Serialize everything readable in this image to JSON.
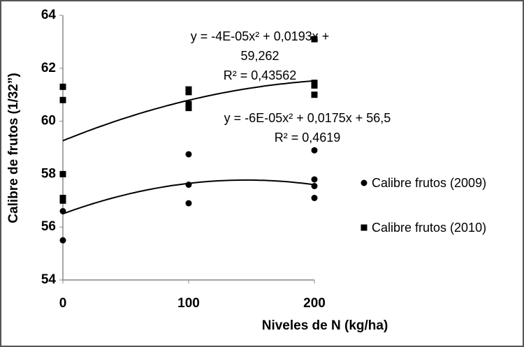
{
  "chart_data": {
    "type": "scatter",
    "x_label": "Niveles de N (kg/ha)",
    "y_label": "Calibre de frutos (1/32”)",
    "xlim": [
      0,
      200
    ],
    "xticks": [
      0,
      100,
      200
    ],
    "ylim": [
      54,
      64
    ],
    "yticks": [
      54,
      56,
      58,
      60,
      62,
      64
    ],
    "grid": false,
    "legend": "right",
    "series": [
      {
        "name": "Calibre frutos (2009)",
        "color": "#000000",
        "marker": "circle",
        "x": [
          0,
          0,
          100,
          100,
          100,
          200,
          200,
          200,
          200
        ],
        "values": [
          56.6,
          55.5,
          58.75,
          57.6,
          56.9,
          58.9,
          57.8,
          57.55,
          57.1
        ],
        "trendline": {
          "coefficients": [
            -6e-05,
            0.0175,
            56.5
          ],
          "label": [
            "y = -6E-05x² + 0,0175x + 56,5",
            "R² = 0,4619"
          ]
        }
      },
      {
        "name": "Calibre frutos (2010)",
        "color": "#000000",
        "marker": "square",
        "x": [
          0,
          0,
          0,
          0,
          0,
          100,
          100,
          100,
          100,
          200,
          200,
          200,
          200
        ],
        "values": [
          61.3,
          60.8,
          58.0,
          57.1,
          57.0,
          61.2,
          61.1,
          60.65,
          60.5,
          63.1,
          61.45,
          61.35,
          61.0
        ],
        "trendline": {
          "coefficients": [
            -4e-05,
            0.0193,
            59.262
          ],
          "label": [
            "y = -4E-05x² + 0,0193x +",
            "59,262",
            "R² = 0,43562"
          ]
        }
      }
    ]
  }
}
